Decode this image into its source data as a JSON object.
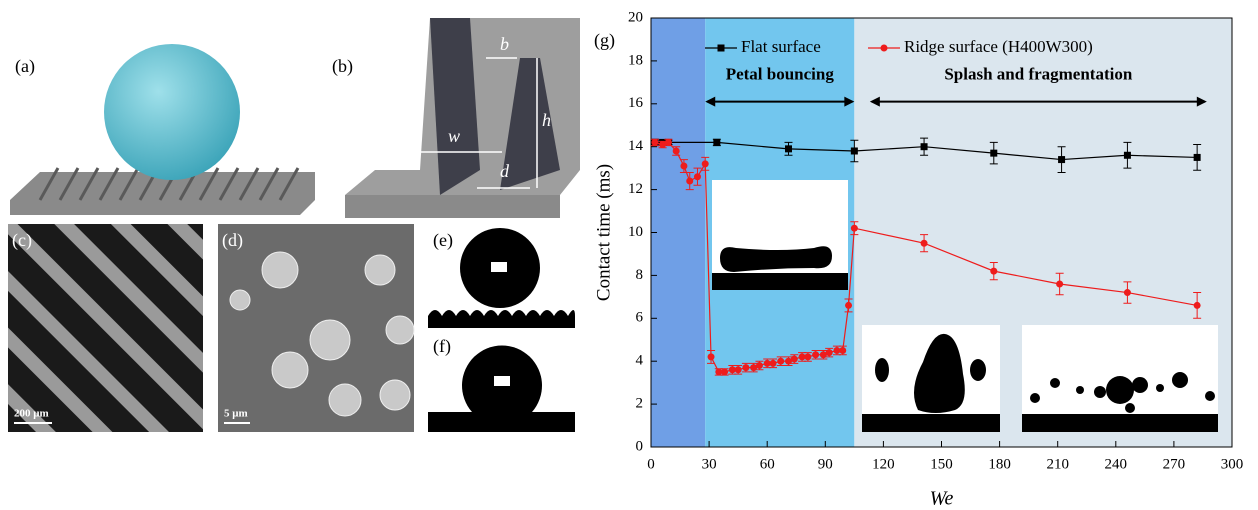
{
  "panels": {
    "a": "(a)",
    "b": "(b)",
    "c": "(c)",
    "d": "(d)",
    "e": "(e)",
    "f": "(f)",
    "dims": {
      "w": "w",
      "b": "b",
      "h": "h",
      "d": "d"
    },
    "scale_c": "200 μm",
    "scale_d": "5 μm"
  },
  "chart_data": {
    "type": "line",
    "panel_label": "(g)",
    "xlabel": "We",
    "ylabel": "Contact time (ms)",
    "xlim": [
      0,
      300
    ],
    "ylim": [
      0,
      20
    ],
    "xticks": [
      0,
      30,
      60,
      90,
      120,
      150,
      180,
      210,
      240,
      270,
      300
    ],
    "yticks": [
      0,
      2,
      4,
      6,
      8,
      10,
      12,
      14,
      16,
      18,
      20
    ],
    "legend": "top",
    "regions": [
      {
        "x": [
          0,
          28
        ],
        "color": "#6f9fe6"
      },
      {
        "x": [
          28,
          105
        ],
        "color": "#72c6ee"
      },
      {
        "x": [
          105,
          300
        ],
        "color": "#dbe6ee"
      }
    ],
    "annotations": [
      {
        "text": "Petal bouncing",
        "x": [
          28,
          105
        ],
        "y": 16.1
      },
      {
        "text": "Splash and fragmentation",
        "x": [
          113,
          287
        ],
        "y": 16.1
      }
    ],
    "series": [
      {
        "name": "Flat surface",
        "color": "#000000",
        "marker": "square",
        "x": [
          2,
          6,
          9,
          34,
          71,
          105,
          141,
          177,
          212,
          246,
          282
        ],
        "values": [
          14.2,
          14.2,
          14.2,
          14.2,
          13.9,
          13.8,
          14.0,
          13.7,
          13.4,
          13.6,
          13.5
        ],
        "errors": [
          0.15,
          0.1,
          0.1,
          0.15,
          0.3,
          0.5,
          0.4,
          0.5,
          0.6,
          0.6,
          0.6
        ]
      },
      {
        "name": "Ridge surface (H400W300)",
        "color": "#ee1c1c",
        "marker": "circle",
        "x": [
          2,
          6,
          9,
          13,
          17,
          20,
          24,
          28,
          31,
          35,
          38,
          42,
          45,
          49,
          53,
          56,
          60,
          63,
          67,
          71,
          74,
          78,
          81,
          85,
          89,
          92,
          96,
          99,
          102,
          105,
          141,
          177,
          211,
          246,
          282
        ],
        "values": [
          14.2,
          14.1,
          14.2,
          13.8,
          13.1,
          12.4,
          12.6,
          13.2,
          4.2,
          3.5,
          3.5,
          3.6,
          3.6,
          3.7,
          3.7,
          3.8,
          3.9,
          3.9,
          4.0,
          4.0,
          4.1,
          4.2,
          4.2,
          4.3,
          4.3,
          4.4,
          4.5,
          4.5,
          6.6,
          10.2,
          9.5,
          8.2,
          7.6,
          7.2,
          6.6
        ],
        "errors": [
          0.15,
          0.15,
          0.15,
          0.2,
          0.3,
          0.4,
          0.4,
          0.3,
          0.3,
          0.15,
          0.15,
          0.2,
          0.2,
          0.2,
          0.2,
          0.2,
          0.2,
          0.2,
          0.2,
          0.2,
          0.2,
          0.2,
          0.2,
          0.2,
          0.2,
          0.2,
          0.2,
          0.2,
          0.3,
          0.3,
          0.4,
          0.4,
          0.5,
          0.5,
          0.6
        ]
      }
    ]
  }
}
